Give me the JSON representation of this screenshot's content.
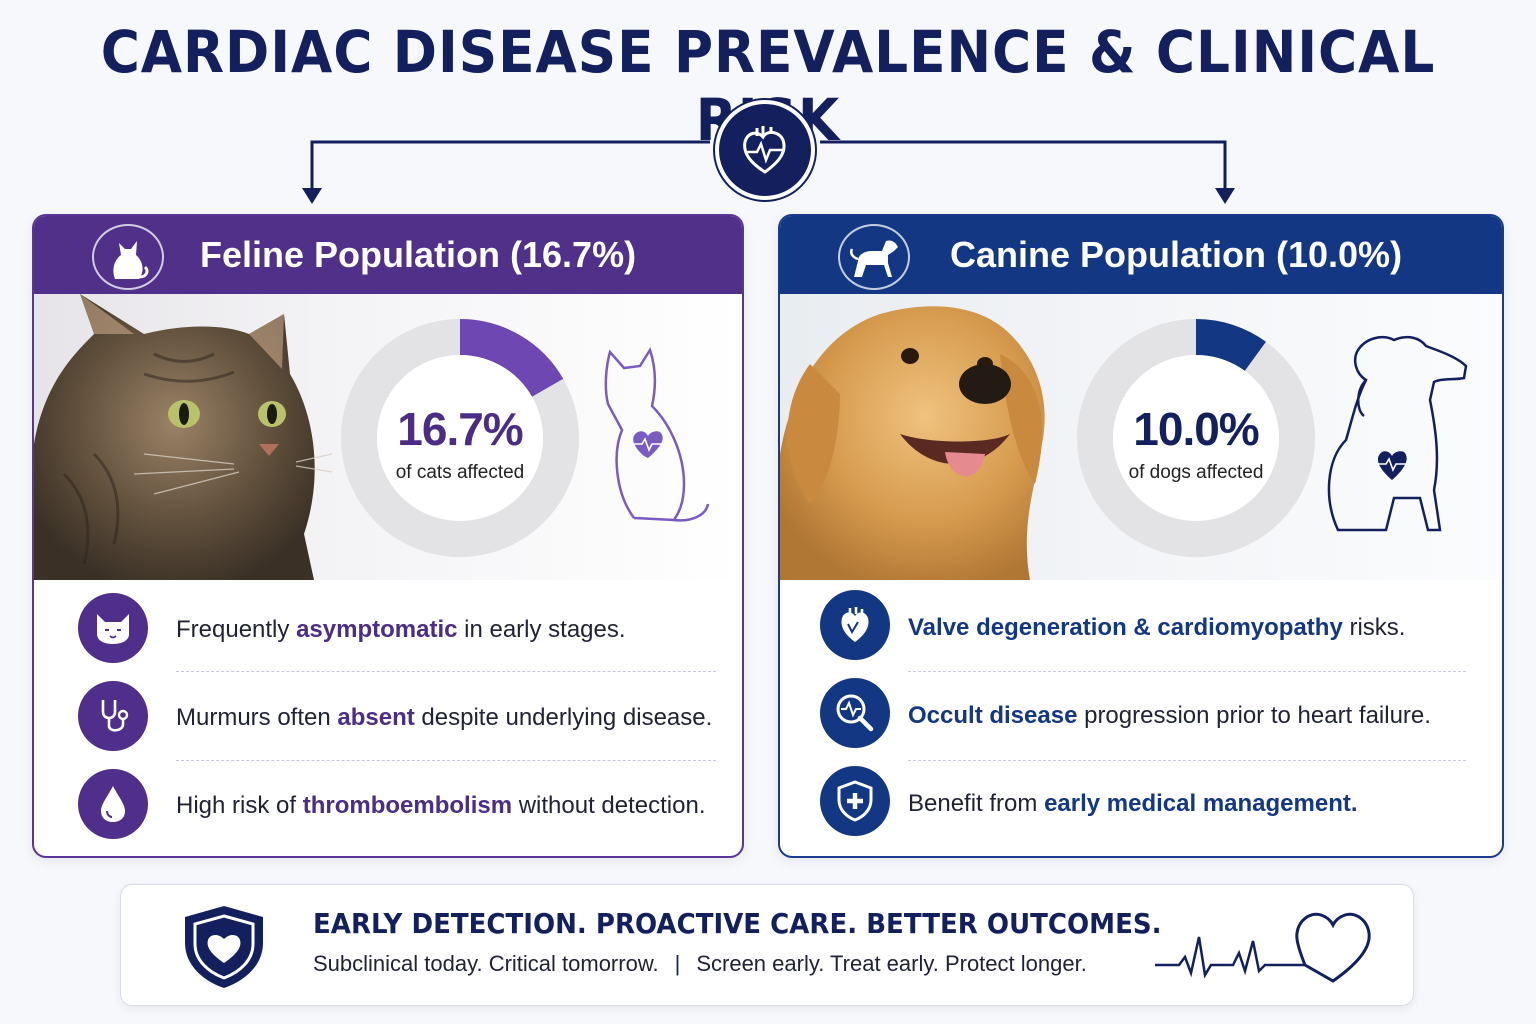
{
  "title": "CARDIAC DISEASE PREVALENCE & CLINICAL RISK",
  "icons": {
    "hub": "heart-ecg-icon",
    "cat_head": "cat-icon",
    "dog_head": "dog-icon",
    "banner": "shield-heart-icon",
    "banner_line": "ecg-heart-icon"
  },
  "colors": {
    "navy": "#14205e",
    "feline_purple": "#503088",
    "canine_blue": "#143784"
  },
  "feline": {
    "heading": "Feline Population (16.7%)",
    "percent_value": 16.7,
    "percent_label": "16.7%",
    "caption": "of cats affected",
    "facts": [
      {
        "icon": "cat-face-icon",
        "pre": "Frequently ",
        "highlight": "asymptomatic",
        "post": " in early stages."
      },
      {
        "icon": "stethoscope-icon",
        "pre": "Murmurs often ",
        "highlight": "absent",
        "post": " despite underlying disease."
      },
      {
        "icon": "blood-drop-icon",
        "pre": "High risk of ",
        "highlight": "thromboembolism",
        "post": " without detection."
      }
    ]
  },
  "canine": {
    "heading": "Canine Population (10.0%)",
    "percent_value": 10.0,
    "percent_label": "10.0%",
    "caption": "of dogs affected",
    "facts": [
      {
        "icon": "heart-organ-icon",
        "pre": "",
        "highlight": "Valve degeneration & cardiomyopathy",
        "post": " risks."
      },
      {
        "icon": "magnifier-ecg-icon",
        "pre": "",
        "highlight": "Occult disease",
        "post": " progression prior to heart failure."
      },
      {
        "icon": "shield-cross-icon",
        "pre": "Benefit from ",
        "highlight": "early medical management.",
        "post": ""
      }
    ]
  },
  "banner": {
    "headline": "EARLY DETECTION. PROACTIVE CARE. BETTER OUTCOMES.",
    "left": "Subclinical today. Critical tomorrow.",
    "separator": "|",
    "right": "Screen early. Treat early. Protect longer."
  }
}
